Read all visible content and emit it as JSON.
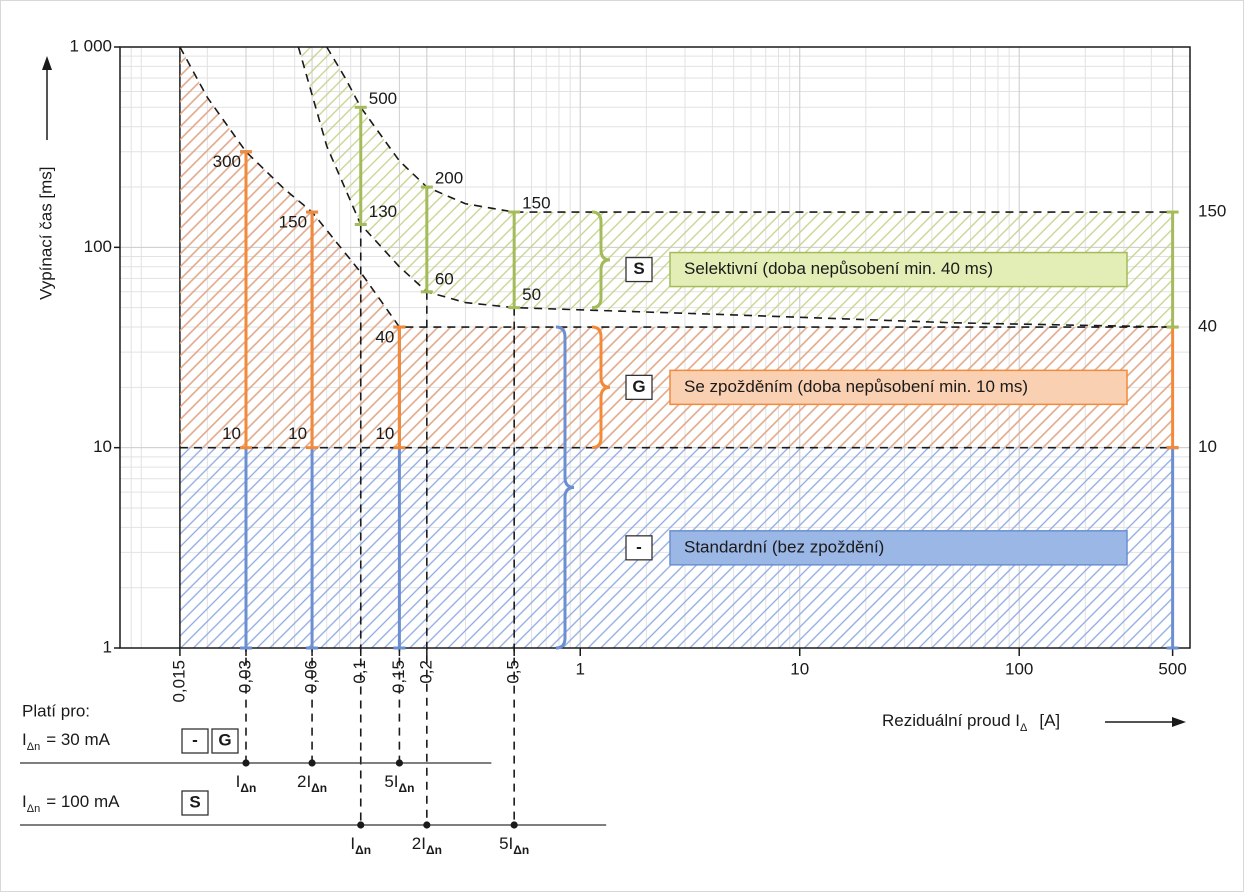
{
  "chart_data": {
    "type": "range",
    "ylabel": "Vypínací čas [ms]",
    "xlabel": {
      "text": "Reziduální proud I",
      "sub": "Δ",
      "unit": "[A]"
    },
    "xscale": "log",
    "yscale": "log",
    "grid": true,
    "xlim": [
      0.008,
      600
    ],
    "ylim": [
      1,
      1000
    ],
    "xticks": [
      {
        "value": 0.015,
        "label": "0,015"
      },
      {
        "value": 0.03,
        "label": "0,03"
      },
      {
        "value": 0.06,
        "label": "0,06"
      },
      {
        "value": 0.1,
        "label": "0,1"
      },
      {
        "value": 0.15,
        "label": "0,15"
      },
      {
        "value": 0.2,
        "label": "0,2"
      },
      {
        "value": 0.5,
        "label": "0,5"
      },
      1,
      10,
      100,
      500
    ],
    "yticks": [
      1,
      10,
      100,
      {
        "value": 1000,
        "label": "1 000"
      }
    ],
    "boundaries": [
      {
        "x": [
          0.015,
          500
        ],
        "y": [
          10,
          10
        ]
      },
      {
        "x": [
          0.015,
          0.02,
          0.03,
          0.045,
          0.06,
          0.1,
          0.15,
          500
        ],
        "y": [
          1000,
          560,
          300,
          195,
          150,
          75,
          40,
          40
        ]
      },
      {
        "x": [
          0.052,
          0.07,
          0.1,
          0.15,
          0.2,
          0.3,
          0.5,
          5,
          50,
          500
        ],
        "y": [
          1000,
          320,
          130,
          80,
          60,
          53,
          50,
          46,
          42,
          40
        ]
      },
      {
        "x": [
          0.07,
          0.085,
          0.1,
          0.15,
          0.2,
          0.3,
          0.5,
          500
        ],
        "y": [
          1000,
          700,
          500,
          270,
          200,
          165,
          150,
          150
        ]
      }
    ],
    "series": [
      {
        "name": "Standardní (bez zpoždění)",
        "symbol": "-",
        "color": "#6b8fd1",
        "fill": "#9bb7e6",
        "hatch": "#8ea9df",
        "area": [
          null,
          1
        ],
        "labels": false,
        "label_side": "left",
        "x": [
          0.03,
          0.06,
          0.15,
          500
        ],
        "low": [
          1,
          1,
          1,
          1
        ],
        "high": [
          300,
          150,
          40,
          10
        ]
      },
      {
        "name": "Se zpožděním (doba nepůsobení min. 10 ms)",
        "symbol": "G",
        "color": "#f28a3a",
        "fill": "#f9d0b2",
        "hatch": "#f1a877",
        "area": [
          0,
          1
        ],
        "labels": true,
        "label_side": "left",
        "x": [
          0.03,
          0.06,
          0.15,
          500
        ],
        "low": [
          10,
          10,
          10,
          10
        ],
        "high": [
          300,
          150,
          40,
          40
        ]
      },
      {
        "name": "Selektivní (doba nepůsobení min. 40 ms)",
        "symbol": "S",
        "color": "#a4bb5a",
        "fill": "#e3eeb6",
        "hatch": "#c3d38d",
        "area": [
          2,
          3
        ],
        "labels": true,
        "label_side": "right",
        "x": [
          0.1,
          0.2,
          0.5,
          500
        ],
        "low": [
          130,
          60,
          50,
          40
        ],
        "high": [
          500,
          200,
          150,
          150
        ]
      }
    ],
    "valid_for": {
      "title": "Platí pro:",
      "rows": [
        {
          "label": "I",
          "sub": "Δn",
          "text": "= 30 mA",
          "symbols": [
            "-",
            "G"
          ],
          "x": [
            0.03,
            0.06,
            0.15
          ],
          "prefixes": [
            null,
            "2",
            "5"
          ]
        },
        {
          "label": "I",
          "sub": "Δn",
          "text": "= 100 mA",
          "symbols": [
            "S"
          ],
          "x": [
            0.1,
            0.2,
            0.5
          ],
          "prefixes": [
            null,
            "2",
            "5"
          ]
        }
      ]
    }
  }
}
